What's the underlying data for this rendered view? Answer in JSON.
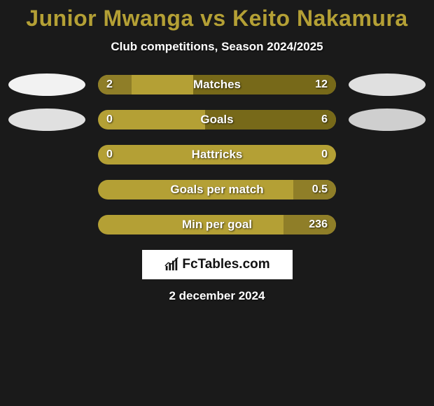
{
  "title": "Junior Mwanga vs Keito Nakamura",
  "subtitle": "Club competitions, Season 2024/2025",
  "date": "2 december 2024",
  "branding": "FcTables.com",
  "colors": {
    "background": "#1a1a1a",
    "bar_base": "#b4a035",
    "fill_med": "#8f7e28",
    "fill_dark": "#776919",
    "ellipse_light": "#f2f2f2",
    "ellipse_mid": "#e0e0e0",
    "ellipse_grey": "#cfcfcf",
    "title": "#b4a035",
    "text": "#ffffff"
  },
  "rows": [
    {
      "label": "Matches",
      "left_val": "2",
      "right_val": "12",
      "left_ellipse": "#f2f2f2",
      "right_ellipse": "#e0e0e0",
      "left_fill_pct": 14,
      "right_fill_pct": 60,
      "left_fill_color": "#8f7e28",
      "right_fill_color": "#776919"
    },
    {
      "label": "Goals",
      "left_val": "0",
      "right_val": "6",
      "left_ellipse": "#e0e0e0",
      "right_ellipse": "#cfcfcf",
      "left_fill_pct": 0,
      "right_fill_pct": 55,
      "left_fill_color": "#8f7e28",
      "right_fill_color": "#776919"
    },
    {
      "label": "Hattricks",
      "left_val": "0",
      "right_val": "0",
      "left_ellipse": null,
      "right_ellipse": null,
      "left_fill_pct": 0,
      "right_fill_pct": 0,
      "left_fill_color": "#8f7e28",
      "right_fill_color": "#776919"
    },
    {
      "label": "Goals per match",
      "left_val": "",
      "right_val": "0.5",
      "left_ellipse": null,
      "right_ellipse": null,
      "left_fill_pct": 0,
      "right_fill_pct": 18,
      "left_fill_color": "#8f7e28",
      "right_fill_color": "#8f7e28"
    },
    {
      "label": "Min per goal",
      "left_val": "",
      "right_val": "236",
      "left_ellipse": null,
      "right_ellipse": null,
      "left_fill_pct": 0,
      "right_fill_pct": 22,
      "left_fill_color": "#8f7e28",
      "right_fill_color": "#8f7e28"
    }
  ]
}
